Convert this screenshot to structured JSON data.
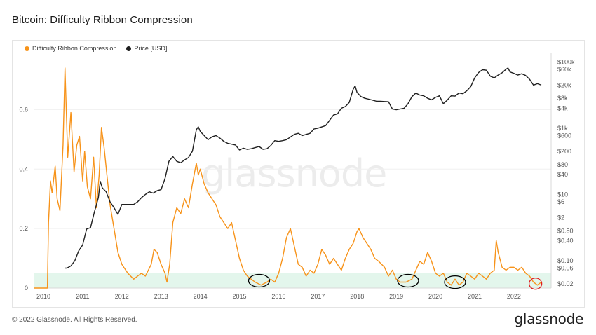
{
  "page": {
    "title": "Bitcoin: Difficulty Ribbon Compression",
    "copyright": "© 2022 Glassnode. All Rights Reserved.",
    "brand": "glassnode",
    "watermark": "glassnode"
  },
  "chart_data": {
    "type": "line",
    "title": "Bitcoin: Difficulty Ribbon Compression",
    "x_ticks": [
      "2010",
      "2011",
      "2012",
      "2013",
      "2014",
      "2015",
      "2016",
      "2017",
      "2018",
      "2019",
      "2020",
      "2021",
      "2022"
    ],
    "x_range": [
      2009.75,
      2022.95
    ],
    "y_left": {
      "ticks": [
        0,
        0.2,
        0.4,
        0.6
      ],
      "tick_labels": [
        "0",
        "0.2",
        "0.4",
        "0.6"
      ],
      "range": [
        0,
        0.78
      ]
    },
    "y_right": {
      "scale": "log",
      "ticks": [
        0.02,
        0.06,
        0.1,
        0.4,
        0.8,
        2,
        6,
        10,
        40,
        80,
        200,
        600,
        1000,
        4000,
        8000,
        20000,
        60000,
        100000
      ],
      "tick_labels": [
        "$0.02",
        "$0.06",
        "$0.10",
        "$0.40",
        "$0.80",
        "$2",
        "$6",
        "$10",
        "$40",
        "$80",
        "$200",
        "$600",
        "$1k",
        "$4k",
        "$8k",
        "$20k",
        "$60k",
        "$100k"
      ],
      "range": [
        0.015,
        150000
      ]
    },
    "legend": {
      "position": "top-left",
      "entries": [
        {
          "label": "Difficulty Ribbon Compression",
          "color": "#f7931a"
        },
        {
          "label": "Price [USD]",
          "color": "#1f1f1f"
        }
      ]
    },
    "shaded_band": {
      "y_from": 0,
      "y_to": 0.05,
      "color": "#e3f6ec"
    },
    "series": [
      {
        "name": "Difficulty Ribbon Compression",
        "axis": "left",
        "color": "#f7931a",
        "points": [
          [
            2009.75,
            0.0
          ],
          [
            2010.1,
            0.0
          ],
          [
            2010.13,
            0.22
          ],
          [
            2010.18,
            0.36
          ],
          [
            2010.22,
            0.32
          ],
          [
            2010.3,
            0.41
          ],
          [
            2010.35,
            0.3
          ],
          [
            2010.42,
            0.26
          ],
          [
            2010.5,
            0.48
          ],
          [
            2010.55,
            0.74
          ],
          [
            2010.62,
            0.44
          ],
          [
            2010.7,
            0.59
          ],
          [
            2010.78,
            0.39
          ],
          [
            2010.85,
            0.48
          ],
          [
            2010.92,
            0.51
          ],
          [
            2011.0,
            0.36
          ],
          [
            2011.05,
            0.46
          ],
          [
            2011.12,
            0.34
          ],
          [
            2011.2,
            0.3
          ],
          [
            2011.28,
            0.44
          ],
          [
            2011.35,
            0.27
          ],
          [
            2011.42,
            0.38
          ],
          [
            2011.48,
            0.54
          ],
          [
            2011.55,
            0.47
          ],
          [
            2011.62,
            0.38
          ],
          [
            2011.7,
            0.28
          ],
          [
            2011.8,
            0.2
          ],
          [
            2011.9,
            0.12
          ],
          [
            2012.0,
            0.08
          ],
          [
            2012.15,
            0.05
          ],
          [
            2012.3,
            0.03
          ],
          [
            2012.4,
            0.04
          ],
          [
            2012.5,
            0.05
          ],
          [
            2012.6,
            0.04
          ],
          [
            2012.75,
            0.08
          ],
          [
            2012.82,
            0.13
          ],
          [
            2012.9,
            0.12
          ],
          [
            2013.0,
            0.08
          ],
          [
            2013.1,
            0.05
          ],
          [
            2013.15,
            0.02
          ],
          [
            2013.22,
            0.08
          ],
          [
            2013.3,
            0.22
          ],
          [
            2013.4,
            0.27
          ],
          [
            2013.5,
            0.25
          ],
          [
            2013.6,
            0.3
          ],
          [
            2013.7,
            0.27
          ],
          [
            2013.8,
            0.35
          ],
          [
            2013.9,
            0.42
          ],
          [
            2013.95,
            0.38
          ],
          [
            2014.0,
            0.4
          ],
          [
            2014.1,
            0.35
          ],
          [
            2014.2,
            0.32
          ],
          [
            2014.3,
            0.3
          ],
          [
            2014.4,
            0.28
          ],
          [
            2014.5,
            0.24
          ],
          [
            2014.6,
            0.22
          ],
          [
            2014.7,
            0.2
          ],
          [
            2014.8,
            0.22
          ],
          [
            2014.9,
            0.16
          ],
          [
            2015.0,
            0.1
          ],
          [
            2015.1,
            0.06
          ],
          [
            2015.2,
            0.04
          ],
          [
            2015.3,
            0.03
          ],
          [
            2015.4,
            0.02
          ],
          [
            2015.55,
            0.01
          ],
          [
            2015.7,
            0.02
          ],
          [
            2015.8,
            0.03
          ],
          [
            2015.9,
            0.02
          ],
          [
            2016.0,
            0.05
          ],
          [
            2016.1,
            0.1
          ],
          [
            2016.2,
            0.17
          ],
          [
            2016.3,
            0.2
          ],
          [
            2016.4,
            0.14
          ],
          [
            2016.5,
            0.08
          ],
          [
            2016.6,
            0.07
          ],
          [
            2016.7,
            0.04
          ],
          [
            2016.8,
            0.06
          ],
          [
            2016.9,
            0.05
          ],
          [
            2017.0,
            0.08
          ],
          [
            2017.1,
            0.13
          ],
          [
            2017.2,
            0.11
          ],
          [
            2017.3,
            0.08
          ],
          [
            2017.4,
            0.1
          ],
          [
            2017.5,
            0.08
          ],
          [
            2017.6,
            0.06
          ],
          [
            2017.7,
            0.1
          ],
          [
            2017.8,
            0.13
          ],
          [
            2017.9,
            0.15
          ],
          [
            2018.0,
            0.19
          ],
          [
            2018.05,
            0.2
          ],
          [
            2018.15,
            0.17
          ],
          [
            2018.25,
            0.15
          ],
          [
            2018.35,
            0.13
          ],
          [
            2018.45,
            0.1
          ],
          [
            2018.55,
            0.09
          ],
          [
            2018.7,
            0.07
          ],
          [
            2018.8,
            0.04
          ],
          [
            2018.9,
            0.06
          ],
          [
            2019.0,
            0.03
          ],
          [
            2019.1,
            0.02
          ],
          [
            2019.25,
            0.02
          ],
          [
            2019.4,
            0.03
          ],
          [
            2019.5,
            0.06
          ],
          [
            2019.6,
            0.09
          ],
          [
            2019.7,
            0.08
          ],
          [
            2019.8,
            0.12
          ],
          [
            2019.9,
            0.09
          ],
          [
            2020.0,
            0.05
          ],
          [
            2020.1,
            0.04
          ],
          [
            2020.2,
            0.05
          ],
          [
            2020.3,
            0.02
          ],
          [
            2020.4,
            0.01
          ],
          [
            2020.5,
            0.03
          ],
          [
            2020.6,
            0.01
          ],
          [
            2020.7,
            0.02
          ],
          [
            2020.8,
            0.05
          ],
          [
            2020.9,
            0.04
          ],
          [
            2021.0,
            0.03
          ],
          [
            2021.1,
            0.05
          ],
          [
            2021.2,
            0.04
          ],
          [
            2021.3,
            0.03
          ],
          [
            2021.4,
            0.05
          ],
          [
            2021.5,
            0.06
          ],
          [
            2021.55,
            0.16
          ],
          [
            2021.6,
            0.12
          ],
          [
            2021.7,
            0.07
          ],
          [
            2021.8,
            0.06
          ],
          [
            2021.9,
            0.07
          ],
          [
            2022.0,
            0.07
          ],
          [
            2022.1,
            0.06
          ],
          [
            2022.2,
            0.07
          ],
          [
            2022.3,
            0.05
          ],
          [
            2022.4,
            0.04
          ],
          [
            2022.5,
            0.02
          ],
          [
            2022.6,
            0.01
          ],
          [
            2022.7,
            0.02
          ]
        ]
      },
      {
        "name": "Price [USD]",
        "axis": "right",
        "color": "#1f1f1f",
        "points": [
          [
            2010.55,
            0.06
          ],
          [
            2010.6,
            0.06
          ],
          [
            2010.7,
            0.07
          ],
          [
            2010.8,
            0.1
          ],
          [
            2010.9,
            0.2
          ],
          [
            2011.0,
            0.3
          ],
          [
            2011.1,
            0.9
          ],
          [
            2011.2,
            1.0
          ],
          [
            2011.3,
            3
          ],
          [
            2011.4,
            8
          ],
          [
            2011.45,
            25
          ],
          [
            2011.5,
            16
          ],
          [
            2011.6,
            12
          ],
          [
            2011.7,
            6
          ],
          [
            2011.8,
            4
          ],
          [
            2011.9,
            2.5
          ],
          [
            2012.0,
            5
          ],
          [
            2012.1,
            5
          ],
          [
            2012.2,
            5
          ],
          [
            2012.3,
            5
          ],
          [
            2012.4,
            6
          ],
          [
            2012.5,
            8
          ],
          [
            2012.6,
            10
          ],
          [
            2012.7,
            12
          ],
          [
            2012.8,
            11
          ],
          [
            2012.9,
            13
          ],
          [
            2013.0,
            14
          ],
          [
            2013.1,
            30
          ],
          [
            2013.2,
            100
          ],
          [
            2013.3,
            140
          ],
          [
            2013.4,
            100
          ],
          [
            2013.5,
            90
          ],
          [
            2013.6,
            110
          ],
          [
            2013.7,
            130
          ],
          [
            2013.8,
            200
          ],
          [
            2013.9,
            900
          ],
          [
            2013.95,
            1100
          ],
          [
            2014.0,
            800
          ],
          [
            2014.1,
            600
          ],
          [
            2014.2,
            450
          ],
          [
            2014.3,
            550
          ],
          [
            2014.4,
            600
          ],
          [
            2014.5,
            500
          ],
          [
            2014.6,
            400
          ],
          [
            2014.7,
            350
          ],
          [
            2014.8,
            330
          ],
          [
            2014.9,
            310
          ],
          [
            2015.0,
            220
          ],
          [
            2015.1,
            250
          ],
          [
            2015.2,
            230
          ],
          [
            2015.3,
            240
          ],
          [
            2015.4,
            260
          ],
          [
            2015.5,
            280
          ],
          [
            2015.6,
            230
          ],
          [
            2015.7,
            240
          ],
          [
            2015.8,
            300
          ],
          [
            2015.9,
            420
          ],
          [
            2016.0,
            400
          ],
          [
            2016.1,
            420
          ],
          [
            2016.2,
            450
          ],
          [
            2016.4,
            650
          ],
          [
            2016.5,
            700
          ],
          [
            2016.6,
            600
          ],
          [
            2016.8,
            700
          ],
          [
            2016.9,
            950
          ],
          [
            2017.0,
            1000
          ],
          [
            2017.2,
            1200
          ],
          [
            2017.4,
            2500
          ],
          [
            2017.5,
            2700
          ],
          [
            2017.6,
            4000
          ],
          [
            2017.7,
            4500
          ],
          [
            2017.8,
            6000
          ],
          [
            2017.9,
            15000
          ],
          [
            2017.95,
            19000
          ],
          [
            2018.0,
            12000
          ],
          [
            2018.1,
            9000
          ],
          [
            2018.2,
            8000
          ],
          [
            2018.3,
            7500
          ],
          [
            2018.4,
            7000
          ],
          [
            2018.5,
            6500
          ],
          [
            2018.6,
            6500
          ],
          [
            2018.7,
            6400
          ],
          [
            2018.8,
            6300
          ],
          [
            2018.9,
            3800
          ],
          [
            2019.0,
            3600
          ],
          [
            2019.1,
            3800
          ],
          [
            2019.2,
            4000
          ],
          [
            2019.3,
            5500
          ],
          [
            2019.4,
            9000
          ],
          [
            2019.5,
            11500
          ],
          [
            2019.6,
            10000
          ],
          [
            2019.7,
            9500
          ],
          [
            2019.8,
            8000
          ],
          [
            2019.9,
            7200
          ],
          [
            2020.0,
            8500
          ],
          [
            2020.1,
            9500
          ],
          [
            2020.2,
            5500
          ],
          [
            2020.3,
            7000
          ],
          [
            2020.4,
            9500
          ],
          [
            2020.5,
            9300
          ],
          [
            2020.6,
            11500
          ],
          [
            2020.7,
            11000
          ],
          [
            2020.8,
            13500
          ],
          [
            2020.9,
            18000
          ],
          [
            2021.0,
            33000
          ],
          [
            2021.1,
            48000
          ],
          [
            2021.2,
            58000
          ],
          [
            2021.3,
            56000
          ],
          [
            2021.4,
            37000
          ],
          [
            2021.5,
            33000
          ],
          [
            2021.6,
            40000
          ],
          [
            2021.7,
            47000
          ],
          [
            2021.8,
            60000
          ],
          [
            2021.85,
            66000
          ],
          [
            2021.9,
            50000
          ],
          [
            2022.0,
            45000
          ],
          [
            2022.1,
            40000
          ],
          [
            2022.2,
            44000
          ],
          [
            2022.3,
            39000
          ],
          [
            2022.4,
            30000
          ],
          [
            2022.5,
            20000
          ],
          [
            2022.6,
            22000
          ],
          [
            2022.7,
            20000
          ]
        ]
      }
    ],
    "annotations": [
      {
        "type": "ellipse",
        "x": 2015.5,
        "y": 0.02,
        "color": "#000000"
      },
      {
        "type": "ellipse",
        "x": 2019.3,
        "y": 0.02,
        "color": "#000000"
      },
      {
        "type": "ellipse",
        "x": 2020.5,
        "y": 0.015,
        "color": "#000000"
      },
      {
        "type": "ellipse",
        "x": 2022.55,
        "y": 0.01,
        "color": "#e01e1e"
      }
    ]
  }
}
